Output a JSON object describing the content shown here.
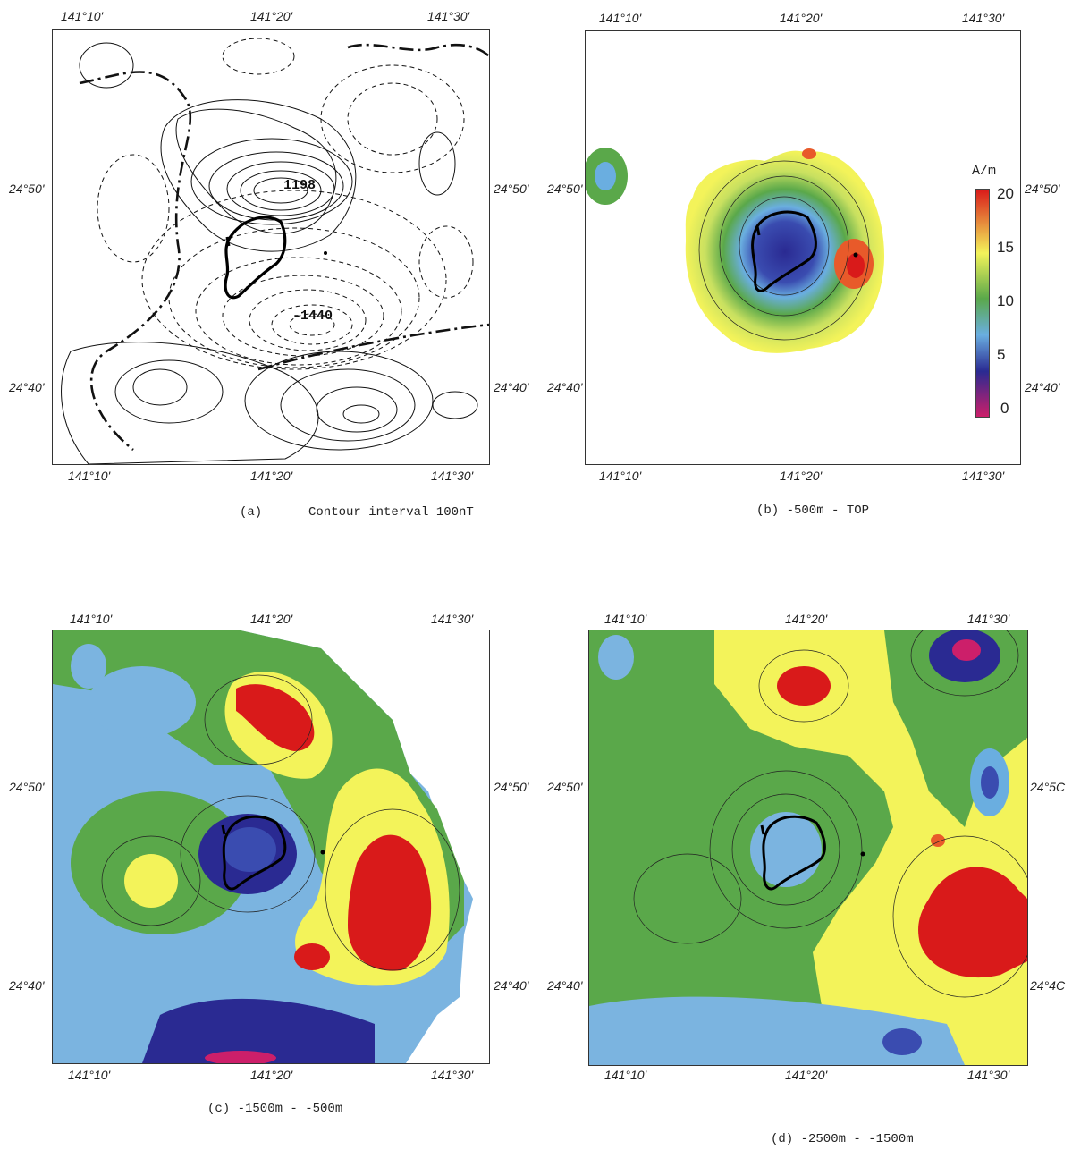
{
  "panels": {
    "a": {
      "caption_letter": "(a)",
      "caption_text": "Contour interval 100nT",
      "labels": [
        "1198",
        "-1440"
      ],
      "lon_ticks": [
        "141°10'",
        "141°20'",
        "141°30'"
      ],
      "lat_ticks": [
        "24°50'",
        "24°40'"
      ]
    },
    "b": {
      "caption_text": "(b) -500m - TOP",
      "lon_ticks": [
        "141°10'",
        "141°20'",
        "141°30'"
      ],
      "lat_ticks": [
        "24°50'",
        "24°40'"
      ],
      "colorbar": {
        "unit": "A/m",
        "ticks": [
          "20",
          "15",
          "10",
          "5",
          "0"
        ],
        "colors": [
          "#cc1f6a",
          "#2a2a92",
          "#6aaee0",
          "#5aa84a",
          "#f3f35a",
          "#d91a1a"
        ]
      }
    },
    "c": {
      "caption_text": "(c) -1500m - -500m",
      "lon_ticks": [
        "141°10'",
        "141°20'",
        "141°30'"
      ],
      "lat_ticks": [
        "24°50'",
        "24°40'"
      ]
    },
    "d": {
      "caption_text": "(d) -2500m - -1500m",
      "lon_ticks": [
        "141°10'",
        "141°20'",
        "141°30'"
      ],
      "lat_ticks_left": [
        "24°50'",
        "24°40'"
      ],
      "lat_ticks_right": [
        "24°5C",
        "24°4C"
      ]
    }
  }
}
